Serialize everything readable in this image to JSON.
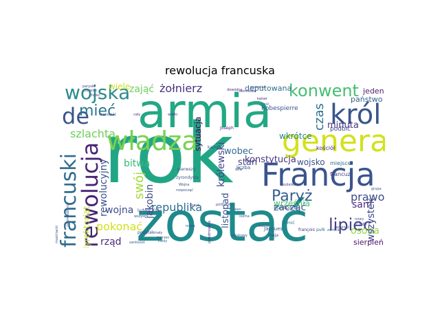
{
  "title": "rewolucja francuska",
  "words": [
    {
      "text": "rok",
      "color": "#21a685"
    },
    {
      "text": "zostać",
      "color": "#1e8a8c"
    },
    {
      "text": "armia",
      "color": "#22a884"
    },
    {
      "text": "Francja",
      "color": "#3a548c"
    },
    {
      "text": "władza",
      "color": "#7ad151"
    },
    {
      "text": "generał",
      "color": "#d2e21b"
    },
    {
      "text": "król",
      "color": "#39568c"
    },
    {
      "text": "francuski",
      "color": "#2f6c8e"
    },
    {
      "text": "rewolucja",
      "color": "#482475"
    },
    {
      "text": "wojska",
      "color": "#2c8b8c"
    },
    {
      "text": "de",
      "color": "#3b528b"
    },
    {
      "text": "konwent",
      "color": "#45be71"
    },
    {
      "text": "Paryż",
      "color": "#355f8d"
    },
    {
      "text": "lipiec",
      "color": "#424086"
    },
    {
      "text": "mieć",
      "color": "#2a768e"
    },
    {
      "text": "swój",
      "color": "#a2da37"
    },
    {
      "text": "szlachta",
      "color": "#6ece58"
    },
    {
      "text": "zająć",
      "color": "#6dcd59"
    },
    {
      "text": "żołnierz",
      "color": "#46327e"
    },
    {
      "text": "wiele",
      "color": "#c8e020"
    },
    {
      "text": "czas",
      "color": "#2c728e"
    },
    {
      "text": "rewolucyjny",
      "color": "#3b528b"
    },
    {
      "text": "republika",
      "color": "#2d708e"
    },
    {
      "text": "pokonać",
      "color": "#d0e11c"
    },
    {
      "text": "królewski",
      "color": "#404688"
    },
    {
      "text": "sytuacja",
      "color": "#440154"
    },
    {
      "text": "konstytucja",
      "color": "#46327e"
    },
    {
      "text": "wobec",
      "color": "#31688e"
    },
    {
      "text": "stan",
      "color": "#414487"
    },
    {
      "text": "zacząć",
      "color": "#3b528b"
    },
    {
      "text": "prawo",
      "color": "#3e4a89"
    },
    {
      "text": "sam",
      "color": "#472d7b"
    },
    {
      "text": "minuta",
      "color": "#46337e"
    },
    {
      "text": "wkrótce",
      "color": "#26828e"
    },
    {
      "text": "deputowana",
      "color": "#2f6c8e"
    },
    {
      "text": "jeden",
      "color": "#481c6e"
    },
    {
      "text": "państwo",
      "color": "#34618d"
    },
    {
      "text": "wojna",
      "color": "#3e4c8a"
    },
    {
      "text": "bitwa",
      "color": "#35b779"
    },
    {
      "text": "jakobin",
      "color": "#3d4e8a"
    },
    {
      "text": "rząd",
      "color": "#482878"
    },
    {
      "text": "dyrektoriat",
      "color": "#b5de2b"
    },
    {
      "text": "osoba",
      "color": "#90d743"
    },
    {
      "text": "wszystek",
      "color": "#3f4788"
    },
    {
      "text": "września",
      "color": "#44bf70"
    },
    {
      "text": "listopad",
      "color": "#3a548c"
    },
    {
      "text": "sierpień",
      "color": "#471365"
    },
    {
      "text": "wojsko",
      "color": "#3c4f8a"
    },
    {
      "text": "Robespierre",
      "color": "#3b528b"
    },
    {
      "text": "podbić",
      "color": "#3f4889"
    },
    {
      "text": "kościół",
      "color": "#482777"
    },
    {
      "text": "liczba",
      "color": "#3b528b"
    },
    {
      "text": "francuz",
      "color": "#424186"
    },
    {
      "text": "miejsce",
      "color": "#31688e"
    },
    {
      "text": "Bonaparte",
      "color": "#355f8d"
    },
    {
      "text": "ludwik XVI",
      "color": "#414487"
    },
    {
      "text": "podatek",
      "color": "#3e4a89"
    },
    {
      "text": "sankiulot",
      "color": "#3b528b"
    },
    {
      "text": "Joseph",
      "color": "#482677"
    },
    {
      "text": "Jacques",
      "color": "#3d4e8a"
    },
    {
      "text": "maja",
      "color": "#404688"
    },
    {
      "text": "françois",
      "color": "#472d7b"
    },
    {
      "text": "pułk",
      "color": "#31688e"
    },
    {
      "text": "czoło",
      "color": "#3b528b"
    },
    {
      "text": "siła",
      "color": "#3b528b"
    },
    {
      "text": "kaznia",
      "color": "#3f4788"
    },
    {
      "text": "żyrondysta",
      "color": "#3b528b"
    },
    {
      "text": "pierwszy",
      "color": "#3e4a89"
    },
    {
      "text": "pozostać",
      "color": "#3b528b"
    },
    {
      "text": "domiódka",
      "color": "#482878"
    },
    {
      "text": "kaiser",
      "color": "#482878"
    },
    {
      "text": "część",
      "color": "#2a788e"
    },
    {
      "text": "paryski",
      "color": "#443a83"
    },
    {
      "text": "czerwiec",
      "color": "#3b528b"
    },
    {
      "text": "chcieć",
      "color": "#3e4c8a"
    },
    {
      "text": "większość",
      "color": "#404688"
    },
    {
      "text": "cały",
      "color": "#46327e"
    },
    {
      "text": "wielki",
      "color": "#46337e"
    },
    {
      "text": "mały",
      "color": "#3a548c"
    },
    {
      "text": "kaidy",
      "color": "#2c728e"
    },
    {
      "text": "marzec",
      "color": "#3b528b"
    },
    {
      "text": "nowa",
      "color": "#3b528b"
    },
    {
      "text": "wszyscy",
      "color": "#3f4889"
    },
    {
      "text": "liczyć",
      "color": "#3b528b"
    },
    {
      "text": "tłumić",
      "color": "#2f6c8e"
    },
    {
      "text": "Jean",
      "color": "#3a548c"
    },
    {
      "text": "sucha",
      "color": "#3b528b"
    },
    {
      "text": "zwrócić",
      "color": "#3b528b"
    },
    {
      "text": "mustriacki",
      "color": "#3e4a89"
    },
    {
      "text": "przedmieście",
      "color": "#482878"
    },
    {
      "text": "wojskowy",
      "color": "#3b528b"
    },
    {
      "text": "polityczny",
      "color": "#3b528b"
    },
    {
      "text": "rozpocząć",
      "color": "#3b528b"
    },
    {
      "text": "Wojna",
      "color": "#3e4a89"
    },
    {
      "text": "grupa",
      "color": "#3b528b"
    },
    {
      "text": "zamknąć",
      "color": "#3b528b"
    },
    {
      "text": "podatek",
      "color": "#3e4a89"
    },
    {
      "text": "nowy",
      "color": "#3b528b"
    },
    {
      "text": "stacja",
      "color": "#3b528b"
    },
    {
      "text": "dowódca",
      "color": "#482878"
    },
    {
      "text": "zgromadzenie",
      "color": "#3b528b"
    }
  ]
}
